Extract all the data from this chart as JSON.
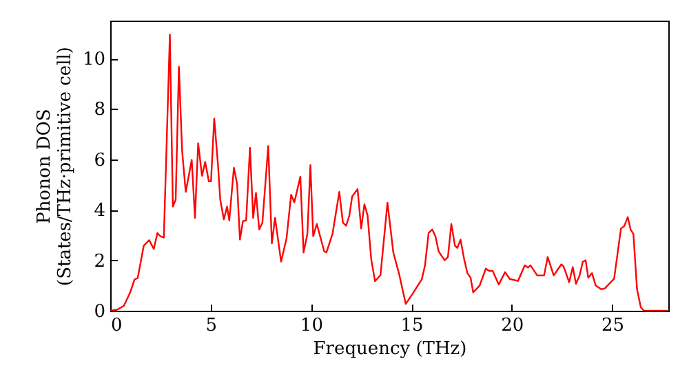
{
  "chart_data": {
    "type": "line",
    "xlabel": "Frequency (THz)",
    "ylabel": "Phonon DOS\n(States/THz·primitive cell)",
    "xlim": [
      0,
      27.8
    ],
    "ylim": [
      0,
      11.5
    ],
    "xticks": [
      0,
      5,
      10,
      15,
      20,
      25
    ],
    "yticks": [
      0,
      2,
      4,
      6,
      8,
      10
    ],
    "grid": false,
    "series": [
      {
        "color": "#ff0000",
        "x": [
          0,
          0.34,
          0.68,
          0.98,
          1.21,
          1.37,
          1.67,
          1.94,
          2.17,
          2.35,
          2.5,
          2.67,
          2.97,
          3.12,
          3.26,
          3.42,
          3.58,
          3.76,
          4.06,
          4.22,
          4.38,
          4.57,
          4.73,
          4.91,
          5.02,
          5.18,
          5.37,
          5.48,
          5.66,
          5.82,
          5.93,
          6.16,
          6.32,
          6.46,
          6.61,
          6.77,
          6.96,
          7.12,
          7.26,
          7.42,
          7.58,
          7.87,
          8.05,
          8.21,
          8.51,
          8.78,
          9.01,
          9.17,
          9.47,
          9.63,
          9.82,
          9.97,
          10.11,
          10.29,
          10.66,
          10.77,
          11.07,
          11.41,
          11.59,
          11.75,
          11.91,
          12.05,
          12.32,
          12.5,
          12.66,
          12.82,
          13.0,
          13.19,
          13.46,
          13.81,
          14.1,
          14.38,
          14.72,
          15.06,
          15.52,
          15.68,
          15.86,
          16.04,
          16.2,
          16.36,
          16.66,
          16.82,
          16.99,
          17.17,
          17.29,
          17.45,
          17.63,
          17.79,
          17.95,
          18.08,
          18.4,
          18.71,
          18.87,
          19.05,
          19.35,
          19.67,
          19.9,
          20.31,
          20.65,
          20.81,
          20.93,
          21.27,
          21.61,
          21.79,
          22.09,
          22.47,
          22.58,
          22.86,
          23.04,
          23.2,
          23.38,
          23.54,
          23.68,
          23.81,
          24.0,
          24.18,
          24.46,
          24.64,
          25.1,
          25.44,
          25.6,
          25.78,
          25.92,
          26.06,
          26.24,
          26.43,
          26.59,
          27.77
        ],
        "values": [
          0,
          0.04,
          0.2,
          0.7,
          1.24,
          1.3,
          2.58,
          2.8,
          2.45,
          3.08,
          2.95,
          2.9,
          10.95,
          4.13,
          4.4,
          9.67,
          6.35,
          4.71,
          5.98,
          3.68,
          6.64,
          5.35,
          5.9,
          5.13,
          5.13,
          7.62,
          5.75,
          4.4,
          3.62,
          4.13,
          3.58,
          5.67,
          5.03,
          2.82,
          3.55,
          3.58,
          6.46,
          3.68,
          4.67,
          3.22,
          3.49,
          6.53,
          2.67,
          3.68,
          1.95,
          2.86,
          4.6,
          4.3,
          5.31,
          2.31,
          3.04,
          5.77,
          2.95,
          3.44,
          2.35,
          2.31,
          3.04,
          4.71,
          3.49,
          3.37,
          3.77,
          4.53,
          4.82,
          3.26,
          4.22,
          3.77,
          2.04,
          1.17,
          1.41,
          4.28,
          2.31,
          1.49,
          0.27,
          0.67,
          1.25,
          1.8,
          3.08,
          3.22,
          2.95,
          2.35,
          2.0,
          2.13,
          3.44,
          2.58,
          2.49,
          2.82,
          2.04,
          1.49,
          1.31,
          0.73,
          1.0,
          1.67,
          1.58,
          1.58,
          1.04,
          1.53,
          1.26,
          1.18,
          1.8,
          1.71,
          1.8,
          1.4,
          1.4,
          2.13,
          1.4,
          1.84,
          1.76,
          1.13,
          1.73,
          1.07,
          1.4,
          1.94,
          2.0,
          1.31,
          1.49,
          1.0,
          0.85,
          0.89,
          1.27,
          3.26,
          3.35,
          3.71,
          3.22,
          3.04,
          0.86,
          0.13,
          0,
          0
        ]
      }
    ]
  }
}
